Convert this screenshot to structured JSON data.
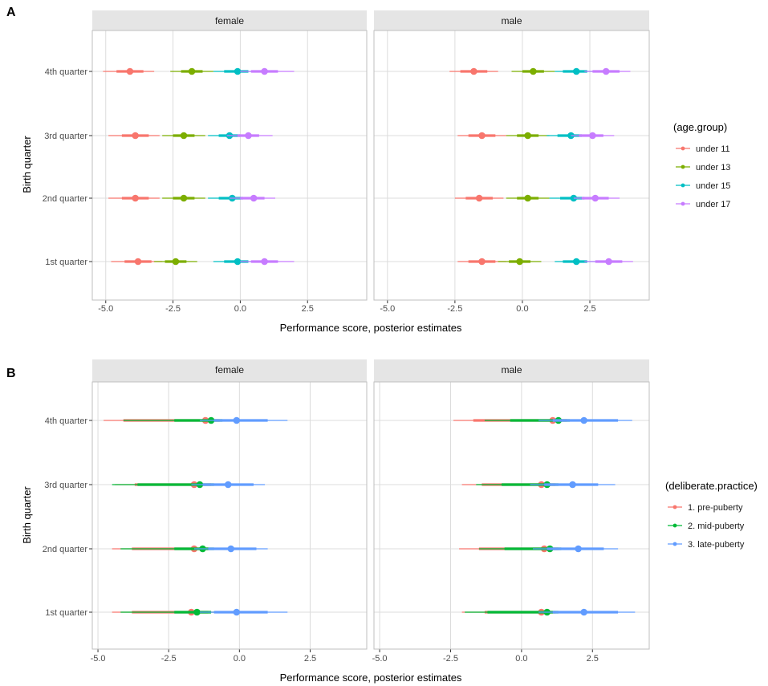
{
  "colors": {
    "age_group": [
      "#F8766D",
      "#7CAE00",
      "#00BFC4",
      "#C77CFF"
    ],
    "deliberate_practice": [
      "#F8766D",
      "#00BA38",
      "#619CFF"
    ],
    "panel_strip": "#E5E5E5",
    "grid": "#DCDCDC",
    "panel_border": "#BFBFBF"
  },
  "chart_data": [
    {
      "type": "pointrange",
      "panel_letter": "A",
      "facets": [
        "female",
        "male"
      ],
      "ylabel": "Birth quarter",
      "xlabel": "Performance score, posterior estimates",
      "categories": [
        "1st quarter",
        "2nd quarter",
        "3rd quarter",
        "4th quarter"
      ],
      "xlim": [
        -5.5,
        4.7
      ],
      "xticks": [
        -5.0,
        -2.5,
        0.0,
        2.5
      ],
      "xtick_labels": [
        "-5.0",
        "-2.5",
        "0.0",
        "2.5"
      ],
      "legend_title": "(age.group)",
      "series": [
        {
          "name": "under 11",
          "color_key": 0,
          "female": [
            [
              -3.8,
              -4.3,
              -3.3,
              -4.8,
              -2.9
            ],
            [
              -3.9,
              -4.4,
              -3.4,
              -4.9,
              -3.0
            ],
            [
              -3.9,
              -4.4,
              -3.4,
              -4.9,
              -3.0
            ],
            [
              -4.1,
              -4.6,
              -3.6,
              -5.1,
              -3.2
            ]
          ],
          "male": [
            [
              -1.5,
              -2.0,
              -1.0,
              -2.4,
              -0.6
            ],
            [
              -1.6,
              -2.1,
              -1.1,
              -2.5,
              -0.7
            ],
            [
              -1.5,
              -2.0,
              -1.0,
              -2.4,
              -0.6
            ],
            [
              -1.8,
              -2.3,
              -1.3,
              -2.7,
              -0.9
            ]
          ]
        },
        {
          "name": "under 13",
          "color_key": 1,
          "female": [
            [
              -2.4,
              -2.8,
              -2.0,
              -3.2,
              -1.6
            ],
            [
              -2.1,
              -2.5,
              -1.7,
              -2.9,
              -1.3
            ],
            [
              -2.1,
              -2.5,
              -1.7,
              -2.9,
              -1.3
            ],
            [
              -1.8,
              -2.2,
              -1.4,
              -2.6,
              -1.0
            ]
          ],
          "male": [
            [
              -0.1,
              -0.5,
              0.3,
              -0.9,
              0.7
            ],
            [
              0.2,
              -0.2,
              0.6,
              -0.6,
              1.0
            ],
            [
              0.2,
              -0.2,
              0.6,
              -0.6,
              1.0
            ],
            [
              0.4,
              0.0,
              0.8,
              -0.4,
              1.2
            ]
          ]
        },
        {
          "name": "under 15",
          "color_key": 2,
          "female": [
            [
              -0.1,
              -0.6,
              0.3,
              -1.0,
              0.6
            ],
            [
              -0.3,
              -0.8,
              0.1,
              -1.2,
              0.5
            ],
            [
              -0.4,
              -0.8,
              0.0,
              -1.2,
              0.4
            ],
            [
              -0.1,
              -0.6,
              0.3,
              -1.0,
              0.6
            ]
          ],
          "male": [
            [
              2.0,
              1.5,
              2.4,
              1.2,
              2.7
            ],
            [
              1.9,
              1.4,
              2.3,
              1.0,
              2.6
            ],
            [
              1.8,
              1.3,
              2.2,
              0.9,
              2.5
            ],
            [
              2.0,
              1.5,
              2.4,
              1.2,
              2.7
            ]
          ]
        },
        {
          "name": "under 17",
          "color_key": 3,
          "female": [
            [
              0.9,
              0.4,
              1.4,
              0.0,
              2.0
            ],
            [
              0.5,
              0.0,
              0.9,
              -0.4,
              1.3
            ],
            [
              0.3,
              -0.1,
              0.7,
              -0.5,
              1.2
            ],
            [
              0.9,
              0.4,
              1.4,
              0.0,
              2.0
            ]
          ],
          "male": [
            [
              3.2,
              2.7,
              3.7,
              2.3,
              4.1
            ],
            [
              2.7,
              2.2,
              3.2,
              1.9,
              3.6
            ],
            [
              2.6,
              2.1,
              3.0,
              1.8,
              3.4
            ],
            [
              3.1,
              2.6,
              3.6,
              2.3,
              4.0
            ]
          ]
        }
      ]
    },
    {
      "type": "pointrange",
      "panel_letter": "B",
      "facets": [
        "female",
        "male"
      ],
      "ylabel": "Birth quarter",
      "xlabel": "Performance score, posterior estimates",
      "categories": [
        "1st quarter",
        "2nd quarter",
        "3rd quarter",
        "4th quarter"
      ],
      "xlim": [
        -5.2,
        4.5
      ],
      "xticks": [
        -5.0,
        -2.5,
        0.0,
        2.5
      ],
      "xtick_labels": [
        "-5.0",
        "-2.5",
        "0.0",
        "2.5"
      ],
      "legend_title": "(deliberate.practice)",
      "series": [
        {
          "name": "1. pre-puberty",
          "color_key": 0,
          "female": [
            [
              -1.7,
              -3.8,
              -1.1,
              -4.5,
              -0.7
            ],
            [
              -1.6,
              -3.8,
              -1.1,
              -4.5,
              -0.7
            ],
            [
              -1.6,
              -3.7,
              -1.0,
              -4.4,
              -0.6
            ],
            [
              -1.2,
              -4.1,
              -0.7,
              -4.8,
              -0.3
            ]
          ],
          "male": [
            [
              0.7,
              -1.3,
              1.2,
              -2.1,
              1.7
            ],
            [
              0.8,
              -1.5,
              1.3,
              -2.2,
              1.8
            ],
            [
              0.7,
              -1.4,
              1.2,
              -2.1,
              1.7
            ],
            [
              1.1,
              -1.7,
              1.6,
              -2.4,
              2.0
            ]
          ]
        },
        {
          "name": "2. mid-puberty",
          "color_key": 1,
          "female": [
            [
              -1.5,
              -2.3,
              -1.0,
              -4.2,
              -0.6
            ],
            [
              -1.3,
              -2.3,
              -0.9,
              -4.2,
              -0.5
            ],
            [
              -1.4,
              -3.6,
              -0.9,
              -4.5,
              -0.5
            ],
            [
              -1.0,
              -2.3,
              -0.6,
              -4.1,
              -0.2
            ]
          ],
          "male": [
            [
              0.9,
              -1.2,
              1.3,
              -2.0,
              1.8
            ],
            [
              1.0,
              -0.6,
              1.4,
              -1.5,
              1.9
            ],
            [
              0.9,
              -0.7,
              1.3,
              -1.6,
              1.8
            ],
            [
              1.3,
              -0.4,
              1.7,
              -1.3,
              2.1
            ]
          ]
        },
        {
          "name": "3. late-puberty",
          "color_key": 2,
          "female": [
            [
              -0.1,
              -0.9,
              1.0,
              -1.4,
              1.7
            ],
            [
              -0.3,
              -1.1,
              0.6,
              -1.6,
              1.0
            ],
            [
              -0.4,
              -1.3,
              0.5,
              -1.7,
              0.9
            ],
            [
              -0.1,
              -0.9,
              1.0,
              -1.4,
              1.7
            ]
          ],
          "male": [
            [
              2.2,
              1.1,
              3.4,
              0.6,
              4.0
            ],
            [
              2.0,
              0.9,
              2.9,
              0.4,
              3.4
            ],
            [
              1.8,
              0.8,
              2.7,
              0.3,
              3.3
            ],
            [
              2.2,
              1.1,
              3.4,
              0.6,
              3.9
            ]
          ]
        }
      ]
    }
  ]
}
